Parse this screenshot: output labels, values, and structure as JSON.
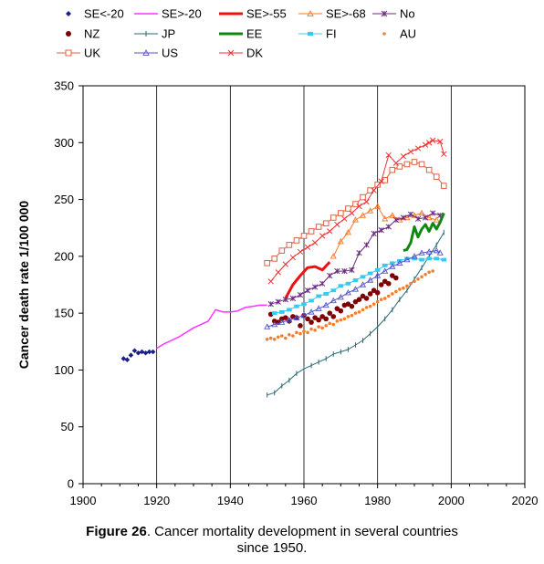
{
  "caption": {
    "label": "Figure 26",
    "text": ". Cancer mortality development in several countries",
    "line2": "since 1950."
  },
  "chart_data": {
    "type": "line",
    "title": "",
    "xlabel": "",
    "ylabel": "Cancer death rate 1/100 000",
    "xlim": [
      1900,
      2020
    ],
    "ylim": [
      0,
      350
    ],
    "xticks": [
      1900,
      1920,
      1940,
      1960,
      1980,
      2000,
      2020
    ],
    "yticks": [
      0,
      50,
      100,
      150,
      200,
      250,
      300,
      350
    ],
    "grid": "vertical",
    "legend_position": "top",
    "series": [
      {
        "name": "SE<-20",
        "color": "#1b1f8a",
        "marker": "diamond",
        "line": false,
        "points": [
          [
            1911,
            110
          ],
          [
            1912,
            109
          ],
          [
            1913,
            113
          ],
          [
            1914,
            117
          ],
          [
            1915,
            115
          ],
          [
            1916,
            116
          ],
          [
            1917,
            115
          ],
          [
            1918,
            116
          ],
          [
            1919,
            116
          ]
        ]
      },
      {
        "name": "SE>-20",
        "color": "#ff33ff",
        "marker": "none",
        "line": true,
        "width": 1.5,
        "points": [
          [
            1920,
            119
          ],
          [
            1922,
            123
          ],
          [
            1924,
            126
          ],
          [
            1926,
            129
          ],
          [
            1928,
            133
          ],
          [
            1930,
            137
          ],
          [
            1932,
            140
          ],
          [
            1934,
            143
          ],
          [
            1936,
            153
          ],
          [
            1938,
            151
          ],
          [
            1940,
            151
          ],
          [
            1942,
            152
          ],
          [
            1944,
            155
          ],
          [
            1946,
            156
          ],
          [
            1948,
            157
          ],
          [
            1950,
            157
          ]
        ]
      },
      {
        "name": "SE>-55",
        "color": "#ee1111",
        "marker": "none",
        "line": true,
        "width": 3,
        "points": [
          [
            1955,
            163
          ],
          [
            1957,
            175
          ],
          [
            1959,
            183
          ],
          [
            1961,
            190
          ],
          [
            1963,
            191
          ],
          [
            1965,
            188
          ],
          [
            1967,
            195
          ]
        ]
      },
      {
        "name": "SE>-68",
        "color": "#ff7722",
        "marker": "triangle-open",
        "line": true,
        "width": 1,
        "points": [
          [
            1968,
            200
          ],
          [
            1970,
            213
          ],
          [
            1972,
            221
          ],
          [
            1974,
            232
          ],
          [
            1976,
            236
          ],
          [
            1978,
            240
          ],
          [
            1980,
            244
          ],
          [
            1982,
            233
          ],
          [
            1984,
            236
          ],
          [
            1986,
            232
          ],
          [
            1988,
            234
          ],
          [
            1990,
            236
          ],
          [
            1992,
            238
          ],
          [
            1994,
            234
          ],
          [
            1996,
            232
          ]
        ]
      },
      {
        "name": "No",
        "color": "#6b2a80",
        "marker": "cross",
        "line": true,
        "width": 1,
        "points": [
          [
            1951,
            158
          ],
          [
            1953,
            160
          ],
          [
            1955,
            162
          ],
          [
            1957,
            163
          ],
          [
            1959,
            166
          ],
          [
            1961,
            170
          ],
          [
            1963,
            173
          ],
          [
            1965,
            176
          ],
          [
            1967,
            183
          ],
          [
            1969,
            187
          ],
          [
            1971,
            187
          ],
          [
            1973,
            188
          ],
          [
            1975,
            203
          ],
          [
            1977,
            210
          ],
          [
            1979,
            220
          ],
          [
            1981,
            223
          ],
          [
            1983,
            226
          ],
          [
            1985,
            232
          ],
          [
            1987,
            234
          ],
          [
            1989,
            237
          ],
          [
            1991,
            233
          ],
          [
            1993,
            234
          ],
          [
            1995,
            238
          ],
          [
            1997,
            236
          ]
        ]
      },
      {
        "name": "NZ",
        "color": "#800000",
        "marker": "circle",
        "line": false,
        "points": [
          [
            1951,
            149
          ],
          [
            1952,
            143
          ],
          [
            1953,
            142
          ],
          [
            1954,
            145
          ],
          [
            1955,
            146
          ],
          [
            1956,
            143
          ],
          [
            1957,
            147
          ],
          [
            1958,
            146
          ],
          [
            1959,
            139
          ],
          [
            1960,
            148
          ],
          [
            1961,
            145
          ],
          [
            1962,
            142
          ],
          [
            1963,
            146
          ],
          [
            1964,
            144
          ],
          [
            1965,
            147
          ],
          [
            1966,
            145
          ],
          [
            1967,
            150
          ],
          [
            1968,
            147
          ],
          [
            1969,
            154
          ],
          [
            1970,
            152
          ],
          [
            1971,
            157
          ],
          [
            1972,
            158
          ],
          [
            1973,
            156
          ],
          [
            1974,
            160
          ],
          [
            1975,
            162
          ],
          [
            1976,
            165
          ],
          [
            1977,
            163
          ],
          [
            1978,
            167
          ],
          [
            1979,
            170
          ],
          [
            1980,
            168
          ],
          [
            1981,
            175
          ],
          [
            1982,
            178
          ],
          [
            1983,
            176
          ],
          [
            1984,
            183
          ],
          [
            1985,
            181
          ]
        ]
      },
      {
        "name": "JP",
        "color": "#2a6a73",
        "marker": "plus",
        "line": true,
        "width": 1,
        "points": [
          [
            1950,
            78
          ],
          [
            1952,
            80
          ],
          [
            1954,
            86
          ],
          [
            1956,
            91
          ],
          [
            1958,
            97
          ],
          [
            1960,
            101
          ],
          [
            1962,
            104
          ],
          [
            1964,
            107
          ],
          [
            1966,
            110
          ],
          [
            1968,
            114
          ],
          [
            1970,
            116
          ],
          [
            1972,
            118
          ],
          [
            1974,
            122
          ],
          [
            1976,
            126
          ],
          [
            1978,
            132
          ],
          [
            1980,
            138
          ],
          [
            1982,
            145
          ],
          [
            1984,
            153
          ],
          [
            1986,
            162
          ],
          [
            1988,
            170
          ],
          [
            1990,
            180
          ],
          [
            1992,
            190
          ],
          [
            1994,
            200
          ],
          [
            1996,
            210
          ],
          [
            1998,
            221
          ]
        ]
      },
      {
        "name": "EE",
        "color": "#118811",
        "marker": "none",
        "line": true,
        "width": 3,
        "points": [
          [
            1987,
            205
          ],
          [
            1988,
            206
          ],
          [
            1989,
            212
          ],
          [
            1990,
            226
          ],
          [
            1991,
            217
          ],
          [
            1992,
            224
          ],
          [
            1993,
            228
          ],
          [
            1994,
            222
          ],
          [
            1995,
            229
          ],
          [
            1996,
            224
          ],
          [
            1997,
            230
          ],
          [
            1998,
            238
          ]
        ]
      },
      {
        "name": "FI",
        "color": "#33ccf0",
        "marker": "square-filled",
        "line": true,
        "width": 1,
        "points": [
          [
            1952,
            150
          ],
          [
            1954,
            151
          ],
          [
            1956,
            153
          ],
          [
            1958,
            156
          ],
          [
            1960,
            158
          ],
          [
            1962,
            161
          ],
          [
            1964,
            165
          ],
          [
            1966,
            167
          ],
          [
            1968,
            170
          ],
          [
            1970,
            174
          ],
          [
            1972,
            176
          ],
          [
            1974,
            179
          ],
          [
            1976,
            182
          ],
          [
            1978,
            185
          ],
          [
            1980,
            188
          ],
          [
            1982,
            192
          ],
          [
            1984,
            194
          ],
          [
            1986,
            196
          ],
          [
            1988,
            198
          ],
          [
            1990,
            198
          ],
          [
            1992,
            197
          ],
          [
            1994,
            198
          ],
          [
            1996,
            198
          ],
          [
            1998,
            197
          ]
        ]
      },
      {
        "name": "AU",
        "color": "#f08030",
        "marker": "dot",
        "line": false,
        "points": [
          [
            1950,
            127
          ],
          [
            1951,
            128
          ],
          [
            1952,
            127
          ],
          [
            1953,
            129
          ],
          [
            1954,
            130
          ],
          [
            1955,
            128
          ],
          [
            1956,
            131
          ],
          [
            1957,
            130
          ],
          [
            1958,
            133
          ],
          [
            1959,
            132
          ],
          [
            1960,
            134
          ],
          [
            1961,
            133
          ],
          [
            1962,
            136
          ],
          [
            1963,
            135
          ],
          [
            1964,
            138
          ],
          [
            1965,
            137
          ],
          [
            1966,
            139
          ],
          [
            1967,
            141
          ],
          [
            1968,
            140
          ],
          [
            1969,
            143
          ],
          [
            1970,
            144
          ],
          [
            1971,
            145
          ],
          [
            1972,
            147
          ],
          [
            1973,
            148
          ],
          [
            1974,
            150
          ],
          [
            1975,
            151
          ],
          [
            1976,
            153
          ],
          [
            1977,
            155
          ],
          [
            1978,
            156
          ],
          [
            1979,
            158
          ],
          [
            1980,
            160
          ],
          [
            1981,
            162
          ],
          [
            1982,
            163
          ],
          [
            1983,
            165
          ],
          [
            1984,
            167
          ],
          [
            1985,
            169
          ],
          [
            1986,
            171
          ],
          [
            1987,
            172
          ],
          [
            1988,
            174
          ],
          [
            1989,
            176
          ],
          [
            1990,
            178
          ],
          [
            1991,
            180
          ],
          [
            1992,
            182
          ],
          [
            1993,
            184
          ],
          [
            1994,
            186
          ],
          [
            1995,
            187
          ]
        ]
      },
      {
        "name": "UK",
        "color": "#e06040",
        "marker": "square-open",
        "line": true,
        "width": 1,
        "points": [
          [
            1950,
            194
          ],
          [
            1952,
            198
          ],
          [
            1954,
            205
          ],
          [
            1956,
            210
          ],
          [
            1958,
            214
          ],
          [
            1960,
            218
          ],
          [
            1962,
            222
          ],
          [
            1964,
            226
          ],
          [
            1966,
            229
          ],
          [
            1968,
            234
          ],
          [
            1970,
            238
          ],
          [
            1972,
            242
          ],
          [
            1974,
            246
          ],
          [
            1976,
            252
          ],
          [
            1978,
            258
          ],
          [
            1980,
            263
          ],
          [
            1982,
            267
          ],
          [
            1984,
            276
          ],
          [
            1986,
            279
          ],
          [
            1988,
            281
          ],
          [
            1990,
            283
          ],
          [
            1992,
            281
          ],
          [
            1994,
            276
          ],
          [
            1996,
            270
          ],
          [
            1998,
            262
          ]
        ]
      },
      {
        "name": "US",
        "color": "#5555cc",
        "marker": "triangle-open",
        "line": true,
        "width": 1,
        "points": [
          [
            1950,
            138
          ],
          [
            1952,
            140
          ],
          [
            1954,
            142
          ],
          [
            1956,
            144
          ],
          [
            1958,
            146
          ],
          [
            1960,
            148
          ],
          [
            1962,
            151
          ],
          [
            1964,
            154
          ],
          [
            1966,
            157
          ],
          [
            1968,
            161
          ],
          [
            1970,
            164
          ],
          [
            1972,
            168
          ],
          [
            1974,
            171
          ],
          [
            1976,
            175
          ],
          [
            1978,
            179
          ],
          [
            1980,
            183
          ],
          [
            1982,
            187
          ],
          [
            1984,
            191
          ],
          [
            1986,
            194
          ],
          [
            1988,
            197
          ],
          [
            1990,
            200
          ],
          [
            1992,
            203
          ],
          [
            1994,
            204
          ],
          [
            1996,
            205
          ],
          [
            1997,
            203
          ]
        ]
      },
      {
        "name": "DK",
        "color": "#ee3333",
        "marker": "x",
        "line": true,
        "width": 1,
        "points": [
          [
            1951,
            178
          ],
          [
            1953,
            186
          ],
          [
            1955,
            193
          ],
          [
            1957,
            199
          ],
          [
            1959,
            204
          ],
          [
            1961,
            208
          ],
          [
            1963,
            212
          ],
          [
            1965,
            218
          ],
          [
            1967,
            222
          ],
          [
            1969,
            228
          ],
          [
            1971,
            233
          ],
          [
            1973,
            238
          ],
          [
            1975,
            244
          ],
          [
            1977,
            248
          ],
          [
            1979,
            258
          ],
          [
            1981,
            266
          ],
          [
            1983,
            289
          ],
          [
            1985,
            282
          ],
          [
            1987,
            288
          ],
          [
            1989,
            292
          ],
          [
            1991,
            295
          ],
          [
            1993,
            298
          ],
          [
            1994,
            300
          ],
          [
            1995,
            302
          ],
          [
            1997,
            301
          ],
          [
            1998,
            290
          ]
        ]
      }
    ]
  }
}
